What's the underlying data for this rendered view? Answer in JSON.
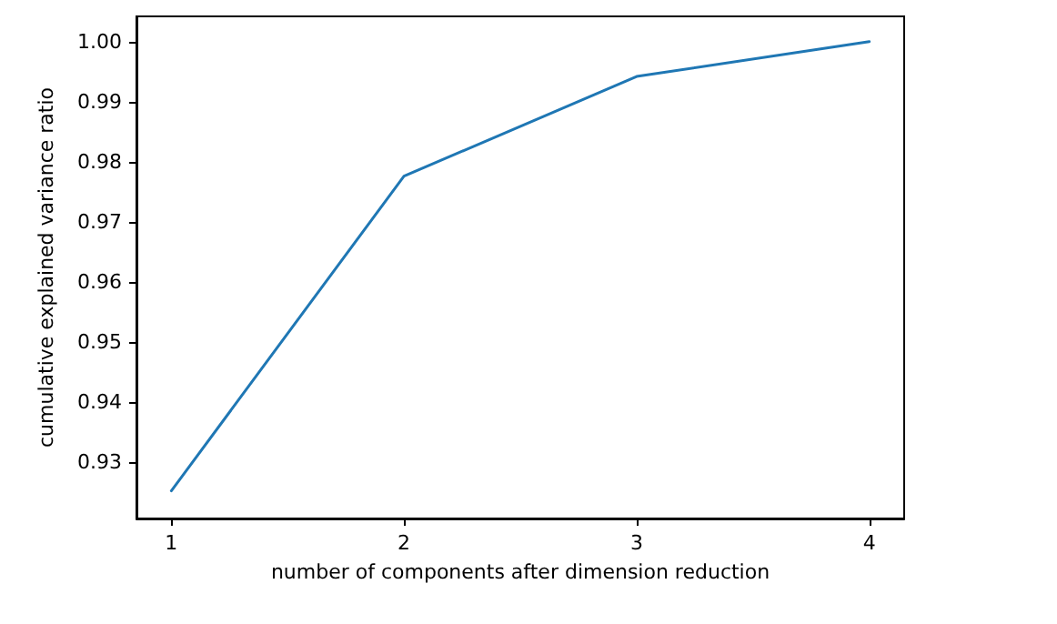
{
  "chart_data": {
    "type": "line",
    "xlabel": "number of components after dimension reduction",
    "ylabel": "cumulative explained variance ratio",
    "x": [
      1,
      2,
      3,
      4
    ],
    "series": [
      {
        "color": "#1f77b4",
        "values": [
          0.9252,
          0.9776,
          0.9942,
          1.0
        ]
      }
    ],
    "xlim": [
      0.85,
      4.15
    ],
    "xticks": [
      1,
      2,
      3,
      4
    ],
    "ylim": [
      0.9206,
      1.0042
    ],
    "yticks": [
      {
        "value": 0.93,
        "label": "0.93"
      },
      {
        "value": 0.94,
        "label": "0.94"
      },
      {
        "value": 0.95,
        "label": "0.95"
      },
      {
        "value": 0.96,
        "label": "0.96"
      },
      {
        "value": 0.97,
        "label": "0.97"
      },
      {
        "value": 0.98,
        "label": "0.98"
      },
      {
        "value": 0.99,
        "label": "0.99"
      },
      {
        "value": 1.0,
        "label": "1.00"
      }
    ],
    "grid": false,
    "marker": "none",
    "line_style": "solid"
  }
}
